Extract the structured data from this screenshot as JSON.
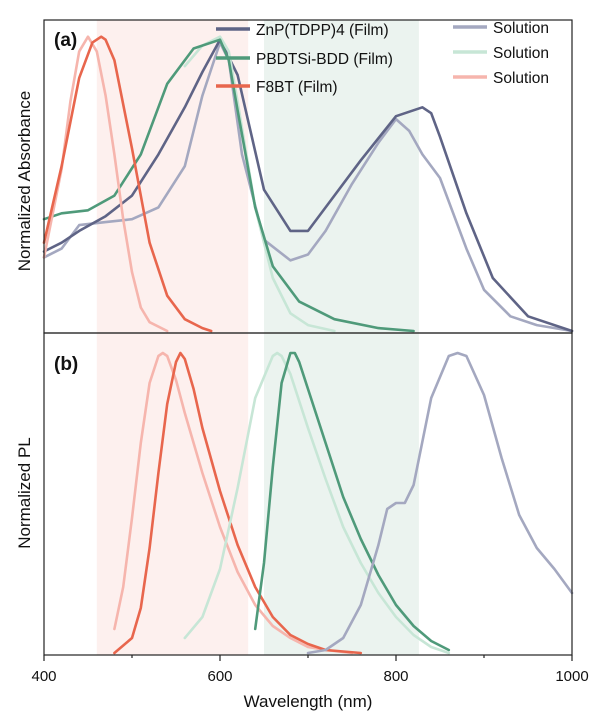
{
  "chart_data": {
    "type": "line",
    "xlabel": "Wavelength (nm)",
    "xlim": [
      400,
      1000
    ],
    "x_ticks": [
      "400",
      "600",
      "800",
      "1000"
    ],
    "colors": {
      "zn_film": "#5f6486",
      "zn_solution": "#a4a8c0",
      "pbdt_film": "#4f9a7a",
      "pbdt_solution": "#c7e6d6",
      "f8bt_film": "#e8664d",
      "f8bt_solution": "#f6b5ad",
      "band_red": "#fdf0ee",
      "band_green": "#ebf3ef"
    },
    "shaded_bands": [
      {
        "name": "F8BT band",
        "x": [
          460,
          632
        ],
        "color": "band_red"
      },
      {
        "name": "PBDTSi-BDD band",
        "x": [
          650,
          826
        ],
        "color": "band_green"
      }
    ],
    "legend": {
      "placement": "top",
      "film_entries": [
        {
          "label": "ZnP(TDPP)4 (Film)",
          "color": "zn_film"
        },
        {
          "label": "PBDTSi-BDD (Film)",
          "color": "pbdt_film"
        },
        {
          "label": "F8BT (Film)",
          "color": "f8bt_film"
        }
      ],
      "solution_entries": [
        {
          "label": "Solution",
          "color": "zn_solution"
        },
        {
          "label": "Solution",
          "color": "pbdt_solution"
        },
        {
          "label": "Solution",
          "color": "f8bt_solution"
        }
      ]
    },
    "panels": [
      {
        "label": "(a)",
        "ylabel": "Normalized Absorbance",
        "ylim": [
          0,
          1.05
        ],
        "series": [
          {
            "key": "zn_solution",
            "x": [
              400,
              420,
              440,
              470,
              500,
              530,
              560,
              580,
              600,
              610,
              625,
              650,
              680,
              700,
              720,
              750,
              780,
              800,
              815,
              830,
              850,
              880,
              900,
              930,
              960,
              1000
            ],
            "y": [
              0.25,
              0.28,
              0.36,
              0.37,
              0.38,
              0.42,
              0.56,
              0.8,
              0.98,
              0.92,
              0.6,
              0.31,
              0.24,
              0.26,
              0.34,
              0.5,
              0.64,
              0.72,
              0.68,
              0.6,
              0.52,
              0.28,
              0.14,
              0.05,
              0.02,
              0.0
            ]
          },
          {
            "key": "zn_film",
            "x": [
              400,
              420,
              440,
              470,
              500,
              530,
              560,
              580,
              600,
              620,
              650,
              680,
              700,
              720,
              760,
              800,
              830,
              840,
              850,
              880,
              910,
              950,
              1000
            ],
            "y": [
              0.27,
              0.3,
              0.34,
              0.39,
              0.46,
              0.6,
              0.76,
              0.88,
              0.99,
              0.87,
              0.48,
              0.34,
              0.34,
              0.42,
              0.58,
              0.73,
              0.76,
              0.74,
              0.66,
              0.4,
              0.18,
              0.05,
              0.0
            ]
          },
          {
            "key": "pbdt_solution",
            "x": [
              560,
              580,
              600,
              610,
              620,
              640,
              660,
              680,
              700,
              730
            ],
            "y": [
              0.9,
              0.97,
              1.0,
              0.95,
              0.78,
              0.42,
              0.18,
              0.06,
              0.02,
              0.0
            ]
          },
          {
            "key": "pbdt_film",
            "x": [
              400,
              420,
              450,
              480,
              510,
              540,
              570,
              600,
              610,
              620,
              640,
              660,
              690,
              730,
              780,
              820
            ],
            "y": [
              0.38,
              0.4,
              0.41,
              0.46,
              0.6,
              0.84,
              0.96,
              0.99,
              0.92,
              0.75,
              0.42,
              0.22,
              0.1,
              0.04,
              0.01,
              0.0
            ]
          },
          {
            "key": "f8bt_solution",
            "x": [
              400,
              420,
              430,
              440,
              450,
              460,
              470,
              480,
              490,
              500,
              510,
              520,
              540
            ],
            "y": [
              0.25,
              0.55,
              0.78,
              0.95,
              1.0,
              0.95,
              0.8,
              0.6,
              0.38,
              0.2,
              0.08,
              0.03,
              0.0
            ]
          },
          {
            "key": "f8bt_film",
            "x": [
              400,
              420,
              440,
              455,
              465,
              470,
              480,
              500,
              520,
              540,
              560,
              580,
              590
            ],
            "y": [
              0.3,
              0.56,
              0.86,
              0.98,
              1.0,
              0.99,
              0.92,
              0.62,
              0.3,
              0.12,
              0.04,
              0.01,
              0.0
            ]
          }
        ]
      },
      {
        "label": "(b)",
        "ylabel": "Normalized PL",
        "ylim": [
          0,
          1.06
        ],
        "series": [
          {
            "key": "f8bt_solution",
            "x": [
              480,
              490,
              500,
              510,
              520,
              530,
              535,
              540,
              550,
              560,
              580,
              600,
              620,
              640,
              660,
              680,
              700,
              720,
              750
            ],
            "y": [
              0.08,
              0.22,
              0.45,
              0.7,
              0.9,
              0.99,
              1.0,
              0.99,
              0.91,
              0.8,
              0.6,
              0.42,
              0.27,
              0.16,
              0.09,
              0.05,
              0.02,
              0.01,
              0.0
            ]
          },
          {
            "key": "f8bt_film",
            "x": [
              480,
              500,
              510,
              520,
              530,
              540,
              550,
              555,
              560,
              570,
              580,
              600,
              620,
              640,
              660,
              680,
              700,
              720,
              760
            ],
            "y": [
              0.0,
              0.05,
              0.15,
              0.35,
              0.6,
              0.83,
              0.97,
              1.0,
              0.98,
              0.88,
              0.75,
              0.54,
              0.36,
              0.22,
              0.12,
              0.06,
              0.03,
              0.01,
              0.0
            ]
          },
          {
            "key": "pbdt_solution",
            "x": [
              560,
              580,
              600,
              620,
              640,
              660,
              665,
              670,
              680,
              700,
              720,
              740,
              760,
              780,
              800,
              820,
              840,
              860
            ],
            "y": [
              0.05,
              0.12,
              0.28,
              0.55,
              0.85,
              0.99,
              1.0,
              0.99,
              0.93,
              0.75,
              0.58,
              0.42,
              0.3,
              0.2,
              0.12,
              0.06,
              0.02,
              0.0
            ]
          },
          {
            "key": "pbdt_film",
            "x": [
              640,
              650,
              660,
              670,
              680,
              685,
              690,
              700,
              720,
              740,
              760,
              780,
              800,
              820,
              840,
              860
            ],
            "y": [
              0.08,
              0.3,
              0.62,
              0.9,
              1.0,
              1.0,
              0.97,
              0.88,
              0.7,
              0.52,
              0.38,
              0.26,
              0.16,
              0.09,
              0.04,
              0.01
            ]
          },
          {
            "key": "zn_solution",
            "x": [
              700,
              720,
              740,
              760,
              780,
              790,
              800,
              810,
              820,
              840,
              860,
              870,
              880,
              900,
              920,
              940,
              960,
              980,
              1000
            ],
            "y": [
              0.0,
              0.01,
              0.05,
              0.16,
              0.36,
              0.48,
              0.5,
              0.5,
              0.56,
              0.85,
              0.99,
              1.0,
              0.99,
              0.86,
              0.65,
              0.46,
              0.35,
              0.28,
              0.2
            ]
          }
        ]
      }
    ]
  }
}
